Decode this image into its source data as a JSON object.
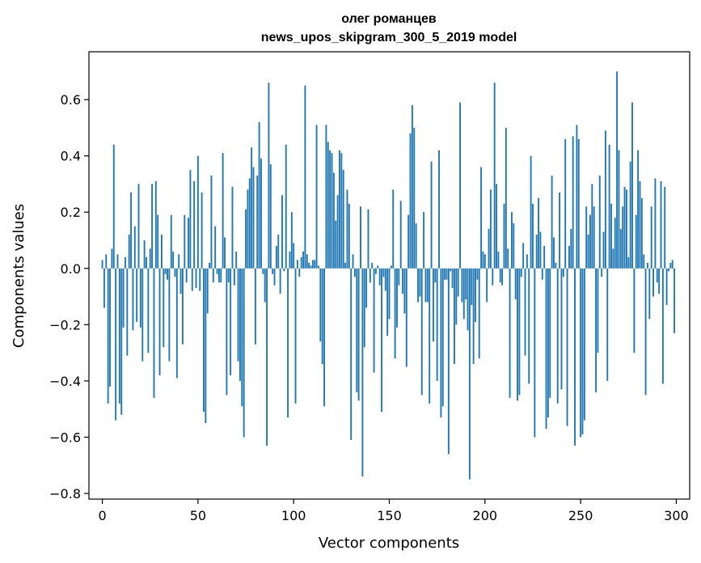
{
  "chart_data": {
    "type": "bar",
    "title": "олег романцев",
    "subtitle": "news_upos_skipgram_300_5_2019 model",
    "xlabel": "Vector components",
    "ylabel": "Components values",
    "xlim": [
      -7,
      307
    ],
    "ylim": [
      -0.82,
      0.77
    ],
    "xticks": [
      0,
      50,
      100,
      150,
      200,
      250,
      300
    ],
    "xtick_labels": [
      "0",
      "50",
      "100",
      "150",
      "200",
      "250",
      "300"
    ],
    "yticks": [
      -0.8,
      -0.6,
      -0.4,
      -0.2,
      0.0,
      0.2,
      0.4,
      0.6
    ],
    "ytick_labels": [
      "−0.8",
      "−0.6",
      "−0.4",
      "−0.2",
      "0.0",
      "0.2",
      "0.4",
      "0.6"
    ],
    "grid": false,
    "bar_color": "#1f77b4",
    "x_start": 0,
    "values": [
      0.03,
      -0.14,
      0.05,
      -0.48,
      -0.42,
      0.07,
      0.44,
      -0.54,
      0.05,
      -0.48,
      -0.52,
      -0.21,
      0.04,
      -0.31,
      0.12,
      0.27,
      -0.22,
      0.15,
      -0.19,
      0.3,
      -0.21,
      -0.33,
      0.1,
      0.04,
      -0.3,
      0.07,
      0.3,
      -0.46,
      0.31,
      0.19,
      -0.38,
      0.12,
      -0.28,
      -0.02,
      -0.04,
      -0.33,
      0.19,
      0.06,
      -0.03,
      -0.39,
      0.05,
      -0.09,
      -0.27,
      0.19,
      -0.05,
      0.18,
      0.35,
      -0.08,
      0.31,
      -0.07,
      0.4,
      -0.08,
      0.27,
      -0.51,
      -0.55,
      -0.16,
      0.02,
      0.33,
      -0.05,
      0.15,
      -0.02,
      -0.05,
      -0.05,
      0.41,
      0.11,
      -0.45,
      -0.05,
      -0.38,
      0.29,
      -0.06,
      0.06,
      -0.33,
      -0.4,
      -0.49,
      -0.6,
      0.21,
      0.28,
      0.32,
      0.43,
      0.36,
      -0.27,
      0.33,
      0.52,
      0.39,
      -0.02,
      -0.12,
      -0.63,
      0.66,
      0.37,
      -0.02,
      -0.06,
      0.08,
      0.12,
      -0.09,
      0.26,
      -0.01,
      0.44,
      -0.53,
      0.06,
      0.2,
      0.09,
      -0.48,
      0.03,
      -0.03,
      0.04,
      0.06,
      0.65,
      0.05,
      0.02,
      0.01,
      0.03,
      0.03,
      0.51,
      0.01,
      -0.26,
      -0.34,
      -0.49,
      0.51,
      0.45,
      0.42,
      0.41,
      0.34,
      0.17,
      0.26,
      0.42,
      0.41,
      0.35,
      0.02,
      0.28,
      0.23,
      -0.61,
      0.05,
      -0.03,
      -0.44,
      -0.47,
      0.22,
      -0.74,
      -0.28,
      -0.14,
      0.21,
      -0.05,
      0.02,
      -0.37,
      -0.02,
      0.01,
      -0.06,
      -0.51,
      -0.03,
      -0.08,
      -0.24,
      -0.18,
      0.01,
      0.28,
      -0.32,
      -0.21,
      -0.06,
      0.24,
      -0.09,
      -0.16,
      -0.35,
      0.19,
      0.48,
      0.58,
      0.5,
      0.16,
      -0.12,
      -0.1,
      -0.45,
      0.2,
      -0.12,
      -0.12,
      -0.48,
      0.38,
      -0.26,
      -0.05,
      -0.4,
      0.42,
      -0.53,
      -0.49,
      -0.04,
      -0.04,
      -0.66,
      -0.01,
      -0.07,
      -0.34,
      -0.2,
      -0.1,
      0.59,
      -0.12,
      -0.18,
      -0.11,
      -0.22,
      -0.75,
      -0.13,
      -0.34,
      -0.19,
      -0.04,
      -0.32,
      0.36,
      0.06,
      0.05,
      -0.12,
      0.14,
      0.28,
      -0.06,
      0.66,
      0.3,
      0.06,
      -0.05,
      -0.06,
      0.23,
      0.5,
      0.07,
      -0.46,
      0.2,
      0.16,
      -0.11,
      -0.47,
      -0.45,
      -0.03,
      0.09,
      -0.31,
      0.05,
      -0.41,
      0.4,
      0.23,
      -0.6,
      0.12,
      0.25,
      0.13,
      -0.04,
      0.08,
      -0.57,
      -0.53,
      -0.46,
      0.33,
      0.11,
      0.02,
      -0.48,
      0.27,
      -0.43,
      -0.03,
      0.46,
      -0.56,
      0.08,
      0.14,
      0.47,
      -0.63,
      0.51,
      0.46,
      -0.6,
      -0.59,
      -0.54,
      0.22,
      0.12,
      0.19,
      0.3,
      0.22,
      -0.44,
      -0.3,
      0.33,
      -0.03,
      0.13,
      0.49,
      -0.4,
      0.44,
      0.23,
      0.07,
      0.18,
      0.7,
      0.42,
      0.14,
      0.22,
      0.29,
      0.28,
      0.04,
      0.38,
      0.59,
      -0.3,
      0.19,
      0.42,
      0.31,
      0.25,
      0.05,
      -0.45,
      0.02,
      -0.18,
      0.22,
      -0.1,
      0.32,
      -0.05,
      -0.09,
      0.31,
      -0.41,
      0.29,
      -0.13,
      -0.01,
      0.02,
      0.03,
      -0.23
    ]
  }
}
